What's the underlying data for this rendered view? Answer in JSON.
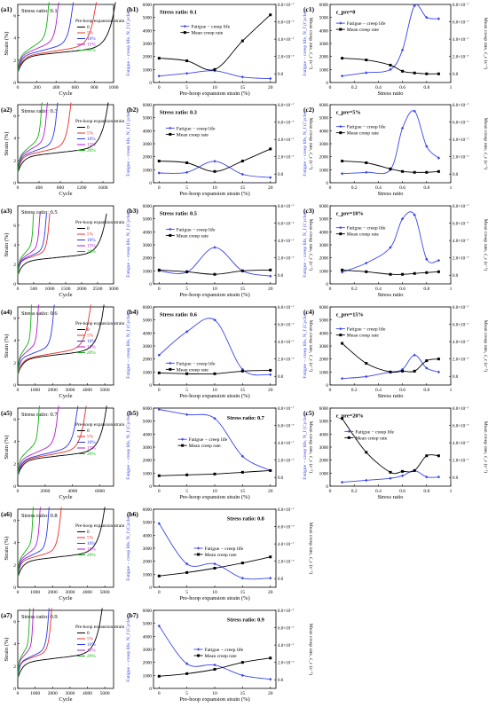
{
  "figure": {
    "col_a": {
      "ylabel": "Strain (%)",
      "xlabel": "Cycle",
      "legend_title": "Pre-hoop expansion strain",
      "legend_entries": [
        "0",
        "5%",
        "10%",
        "15%",
        "20%"
      ],
      "series_colors": [
        "#000000",
        "#e8302a",
        "#2a38e8",
        "#b01ad0",
        "#10b010"
      ]
    },
    "col_b": {
      "ylabel": "Fatigue − creep life, N_f (Cycle)",
      "ylabel2": "Mean creep rate, ε̇_c (s⁻¹)",
      "xlabel": "Pre-hoop expansion strain (%)",
      "legend": [
        "Fatigue − creep life",
        "Mean creep rate"
      ],
      "life_color": "#3a46e8",
      "rate_color": "#000000"
    },
    "col_c": {
      "ylabel": "Fatigue − creep life, N_f (Cycle)",
      "ylabel2": "Mean creep rate, ε̇_c (s⁻¹)",
      "xlabel": "Stress ratio",
      "legend": [
        "Fatigue − creep life",
        "Mean creep rate"
      ]
    }
  },
  "chart_data": [
    {
      "panel": "a1",
      "type": "line",
      "annotation": "Stress ratio: 0.1",
      "xlabel": "Cycle",
      "ylabel": "Strain (%)",
      "xlim": [
        0,
        1000
      ],
      "ylim": [
        0,
        7
      ],
      "xticks": [
        0,
        200,
        400,
        600,
        800,
        1000
      ],
      "yticks": [
        0,
        2,
        4,
        6
      ],
      "series": [
        {
          "name": "0",
          "fatigue_life": 1020
        },
        {
          "name": "5%",
          "fatigue_life": 820
        },
        {
          "name": "10%",
          "fatigue_life": 580
        },
        {
          "name": "15%",
          "fatigue_life": 430
        },
        {
          "name": "20%",
          "fatigue_life": 330
        }
      ]
    },
    {
      "panel": "a2",
      "type": "line",
      "annotation": "Stress ratio: 0.3",
      "xlabel": "Cycle",
      "ylabel": "Strain (%)",
      "xlim": [
        0,
        1800
      ],
      "ylim": [
        0,
        7
      ],
      "xticks": [
        0,
        400,
        800,
        1200,
        1600
      ],
      "yticks": [
        0,
        2,
        4,
        6
      ],
      "series": [
        {
          "name": "0",
          "fatigue_life": 1700
        },
        {
          "name": "5%",
          "fatigue_life": 1000
        },
        {
          "name": "10%",
          "fatigue_life": 750
        },
        {
          "name": "15%",
          "fatigue_life": 560
        },
        {
          "name": "20%",
          "fatigue_life": 460
        }
      ]
    },
    {
      "panel": "a3",
      "type": "line",
      "annotation": "Stress ratio: 0.5",
      "xlabel": "Cycle",
      "ylabel": "Strain (%)",
      "xlim": [
        0,
        3000
      ],
      "ylim": [
        0,
        8
      ],
      "xticks": [
        0,
        500,
        1000,
        1500,
        2000,
        2500,
        3000
      ],
      "yticks": [
        0,
        2,
        4,
        6
      ],
      "series": [
        {
          "name": "0",
          "fatigue_life": 2780
        },
        {
          "name": "5%",
          "fatigue_life": 1000
        },
        {
          "name": "10%",
          "fatigue_life": 900
        },
        {
          "name": "15%",
          "fatigue_life": 700
        },
        {
          "name": "20%",
          "fatigue_life": 500
        }
      ]
    },
    {
      "panel": "a4",
      "type": "line",
      "annotation": "Stress ratio: 0.6",
      "xlabel": "Cycle",
      "ylabel": "Strain (%)",
      "xlim": [
        0,
        5500
      ],
      "ylim": [
        0,
        7
      ],
      "xticks": [
        0,
        1000,
        2000,
        3000,
        4000,
        5000
      ],
      "yticks": [
        0,
        2,
        4,
        6
      ],
      "series": [
        {
          "name": "0",
          "fatigue_life": 4950
        },
        {
          "name": "5%",
          "fatigue_life": 4200
        },
        {
          "name": "10%",
          "fatigue_life": 2100
        },
        {
          "name": "15%",
          "fatigue_life": 1200
        },
        {
          "name": "20%",
          "fatigue_life": 800
        }
      ]
    },
    {
      "panel": "a5",
      "type": "line",
      "annotation": "Stress ratio: 0.7",
      "xlabel": "Cycle",
      "ylabel": "Strain (%)",
      "xlim": [
        0,
        7000
      ],
      "ylim": [
        0,
        7
      ],
      "xticks": [
        0,
        2000,
        4000,
        6000
      ],
      "yticks": [
        0,
        2,
        4,
        6
      ],
      "series": [
        {
          "name": "0",
          "fatigue_life": 6500
        },
        {
          "name": "5%",
          "fatigue_life": 5000
        },
        {
          "name": "10%",
          "fatigue_life": 4400
        },
        {
          "name": "15%",
          "fatigue_life": 3000
        },
        {
          "name": "20%",
          "fatigue_life": 1600
        }
      ]
    },
    {
      "panel": "a6",
      "type": "line",
      "annotation": "Stress ratio: 0.8",
      "xlabel": "Cycle",
      "ylabel": "Strain (%)",
      "xlim": [
        0,
        5500
      ],
      "ylim": [
        0,
        7
      ],
      "xticks": [
        0,
        1000,
        2000,
        3000,
        4000,
        5000
      ],
      "yticks": [
        0,
        2,
        4,
        6
      ],
      "series": [
        {
          "name": "0",
          "fatigue_life": 5000
        },
        {
          "name": "5%",
          "fatigue_life": 2500
        },
        {
          "name": "10%",
          "fatigue_life": 1800
        },
        {
          "name": "15%",
          "fatigue_life": 1300
        },
        {
          "name": "20%",
          "fatigue_life": 900
        }
      ]
    },
    {
      "panel": "a7",
      "type": "line",
      "annotation": "Stress ratio: 0.9",
      "xlabel": "Cycle",
      "ylabel": "Strain (%)",
      "xlim": [
        0,
        5500
      ],
      "ylim": [
        0,
        7
      ],
      "xticks": [
        0,
        1000,
        2000,
        3000,
        4000,
        5000
      ],
      "yticks": [
        0,
        2,
        4,
        6
      ],
      "series": [
        {
          "name": "0",
          "fatigue_life": 4850
        },
        {
          "name": "5%",
          "fatigue_life": 1950
        },
        {
          "name": "10%",
          "fatigue_life": 1800
        },
        {
          "name": "15%",
          "fatigue_life": 900
        },
        {
          "name": "20%",
          "fatigue_life": 700
        }
      ]
    },
    {
      "panel": "b1",
      "type": "scatter",
      "annotation": "Stress ratio: 0.1",
      "x": [
        0,
        5,
        10,
        15,
        20
      ],
      "xlim": [
        -1,
        21
      ],
      "xticks": [
        0,
        5,
        10,
        15,
        20
      ],
      "ylim": [
        0,
        6000
      ],
      "yticks": [
        0,
        1000,
        2000,
        3000,
        4000,
        5000,
        6000
      ],
      "y2lim": [
        -1e-07,
        8e-07
      ],
      "y2ticks": [
        "0.0",
        "2.0×10⁻⁷",
        "4.0×10⁻⁷",
        "6.0×10⁻⁷",
        "8.0×10⁻⁷"
      ],
      "y2values": [
        0,
        2e-07,
        4e-07,
        6e-07,
        8e-07
      ],
      "life": [
        500,
        700,
        900,
        420,
        300
      ],
      "rate": [
        1.8e-07,
        1.5e-07,
        5e-08,
        3.8e-07,
        6.8e-07
      ]
    },
    {
      "panel": "b2",
      "type": "scatter",
      "annotation": "Stress ratio: 0.3",
      "x": [
        0,
        5,
        10,
        15,
        20
      ],
      "xlim": [
        -1,
        21
      ],
      "xticks": [
        0,
        5,
        10,
        15,
        20
      ],
      "ylim": [
        0,
        6000
      ],
      "yticks": [
        0,
        1000,
        2000,
        3000,
        4000,
        5000,
        6000
      ],
      "y2lim": [
        -1e-07,
        8e-07
      ],
      "y2ticks": [
        "0.0",
        "2.0×10⁻⁷",
        "4.0×10⁻⁷",
        "6.0×10⁻⁷",
        "8.0×10⁻⁷"
      ],
      "y2values": [
        0,
        2e-07,
        4e-07,
        6e-07,
        8e-07
      ],
      "life": [
        750,
        800,
        1650,
        650,
        400
      ],
      "rate": [
        1.5e-07,
        1.3e-07,
        3e-08,
        1.5e-07,
        2.9e-07
      ]
    },
    {
      "panel": "b3",
      "type": "scatter",
      "annotation": "Stress ratio: 0.5",
      "x": [
        0,
        5,
        10,
        15,
        20
      ],
      "xlim": [
        -1,
        21
      ],
      "xticks": [
        0,
        5,
        10,
        15,
        20
      ],
      "ylim": [
        0,
        6000
      ],
      "yticks": [
        0,
        1000,
        2000,
        3000,
        4000,
        5000,
        6000
      ],
      "y2lim": [
        -1e-07,
        8e-07
      ],
      "y2ticks": [
        "0.0",
        "2.0×10⁻⁷",
        "4.0×10⁻⁷",
        "6.0×10⁻⁷",
        "8.0×10⁻⁷"
      ],
      "y2values": [
        0,
        2e-07,
        4e-07,
        6e-07,
        8e-07
      ],
      "life": [
        1000,
        900,
        2800,
        1000,
        600
      ],
      "rate": [
        6e-08,
        4e-08,
        1e-08,
        5e-08,
        6e-08
      ]
    },
    {
      "panel": "b4",
      "type": "scatter",
      "annotation": "Stress ratio: 0.6",
      "x": [
        0,
        5,
        10,
        15,
        20
      ],
      "xlim": [
        -1,
        21
      ],
      "xticks": [
        0,
        5,
        10,
        15,
        20
      ],
      "ylim": [
        0,
        6000
      ],
      "yticks": [
        0,
        1000,
        2000,
        3000,
        4000,
        5000,
        6000
      ],
      "y2lim": [
        -1e-07,
        8e-07
      ],
      "y2ticks": [
        "0.0",
        "2.0×10⁻⁷",
        "4.0×10⁻⁷",
        "6.0×10⁻⁷",
        "8.0×10⁻⁷"
      ],
      "y2values": [
        0,
        2e-07,
        4e-07,
        6e-07,
        8e-07
      ],
      "life": [
        2300,
        4100,
        5000,
        1200,
        800
      ],
      "rate": [
        4e-08,
        3e-08,
        3e-08,
        6e-08,
        7e-08
      ]
    },
    {
      "panel": "b5",
      "type": "scatter",
      "annotation": "Stress ratio: 0.7",
      "x": [
        0,
        5,
        10,
        15,
        20
      ],
      "xlim": [
        -1,
        21
      ],
      "xticks": [
        0,
        5,
        10,
        15,
        20
      ],
      "ylim": [
        0,
        6000
      ],
      "yticks": [
        0,
        1000,
        2000,
        3000,
        4000,
        5000,
        6000
      ],
      "y2lim": [
        -1e-07,
        8e-07
      ],
      "y2ticks": [
        "0.0",
        "2.0×10⁻⁷",
        "4.0×10⁻⁷",
        "6.0×10⁻⁷",
        "8.0×10⁻⁷"
      ],
      "y2values": [
        0,
        2e-07,
        4e-07,
        6e-07,
        8e-07
      ],
      "life": [
        5900,
        5500,
        5200,
        2300,
        1200
      ],
      "rate": [
        2e-08,
        3e-08,
        4e-08,
        6e-08,
        8e-08
      ]
    },
    {
      "panel": "b6",
      "type": "scatter",
      "annotation": "Stress ratio: 0.8",
      "x": [
        0,
        5,
        10,
        15,
        20
      ],
      "xlim": [
        -1,
        21
      ],
      "xticks": [
        0,
        5,
        10,
        15,
        20
      ],
      "ylim": [
        0,
        6000
      ],
      "yticks": [
        0,
        1000,
        2000,
        3000,
        4000,
        5000,
        6000
      ],
      "y2lim": [
        -1e-07,
        8e-07
      ],
      "y2ticks": [
        "0.0",
        "2.0×10⁻⁷",
        "4.0×10⁻⁷",
        "6.0×10⁻⁷",
        "8.0×10⁻⁷"
      ],
      "y2values": [
        0,
        2e-07,
        4e-07,
        6e-07,
        8e-07
      ],
      "life": [
        4900,
        1800,
        1800,
        700,
        700
      ],
      "rate": [
        3e-08,
        7e-08,
        1.2e-07,
        1.8e-07,
        2.5e-07
      ]
    },
    {
      "panel": "b7",
      "type": "scatter",
      "annotation": "Stress ratio: 0.9",
      "x": [
        0,
        5,
        10,
        15,
        20
      ],
      "xlim": [
        -1,
        21
      ],
      "xticks": [
        0,
        5,
        10,
        15,
        20
      ],
      "ylim": [
        0,
        6000
      ],
      "yticks": [
        0,
        1000,
        2000,
        3000,
        4000,
        5000,
        6000
      ],
      "y2lim": [
        -1e-07,
        8e-07
      ],
      "y2ticks": [
        "0.0",
        "2.0×10⁻⁷",
        "4.0×10⁻⁷",
        "6.0×10⁻⁷",
        "8.0×10⁻⁷"
      ],
      "y2values": [
        0,
        2e-07,
        4e-07,
        6e-07,
        8e-07
      ],
      "life": [
        4800,
        1900,
        1800,
        1000,
        700
      ],
      "rate": [
        4e-08,
        7e-08,
        1.2e-07,
        2e-07,
        2.5e-07
      ]
    },
    {
      "panel": "c1",
      "type": "scatter",
      "annotation": "ε_pre=0",
      "x": [
        0.1,
        0.3,
        0.5,
        0.6,
        0.7,
        0.8,
        0.9
      ],
      "xlim": [
        0,
        1
      ],
      "xticks": [
        0.0,
        0.2,
        0.4,
        0.6,
        0.8,
        1.0
      ],
      "ylim": [
        0,
        6000
      ],
      "yticks": [
        0,
        1000,
        2000,
        3000,
        4000,
        5000,
        6000
      ],
      "y2lim": [
        -1e-07,
        8e-07
      ],
      "y2ticks": [
        "0.0",
        "2.0×10⁻⁷",
        "4.0×10⁻⁷",
        "6.0×10⁻⁷",
        "8.0×10⁻⁷"
      ],
      "y2values": [
        0,
        2e-07,
        4e-07,
        6e-07,
        8e-07
      ],
      "life": [
        500,
        750,
        1000,
        2500,
        5900,
        5000,
        4900
      ],
      "rate": [
        1.8e-07,
        1.6e-07,
        1e-07,
        3e-08,
        1e-08,
        0.0,
        0.0
      ]
    },
    {
      "panel": "c2",
      "type": "scatter",
      "annotation": "ε_pre=5%",
      "x": [
        0.1,
        0.3,
        0.5,
        0.6,
        0.7,
        0.8,
        0.9
      ],
      "xlim": [
        0,
        1
      ],
      "xticks": [
        0.0,
        0.2,
        0.4,
        0.6,
        0.8,
        1.0
      ],
      "ylim": [
        0,
        6000
      ],
      "yticks": [
        0,
        1000,
        2000,
        3000,
        4000,
        5000,
        6000
      ],
      "y2lim": [
        -1e-07,
        8e-07
      ],
      "y2ticks": [
        "0.0",
        "2.0×10⁻⁷",
        "4.0×10⁻⁷",
        "6.0×10⁻⁷",
        "8.0×10⁻⁷"
      ],
      "y2values": [
        0,
        2e-07,
        4e-07,
        6e-07,
        8e-07
      ],
      "life": [
        700,
        800,
        1000,
        4200,
        5500,
        2800,
        1900
      ],
      "rate": [
        1.5e-07,
        1.3e-07,
        6e-08,
        3e-08,
        2e-08,
        2e-08,
        3e-08
      ]
    },
    {
      "panel": "c3",
      "type": "scatter",
      "annotation": "ε_pre=10%",
      "x": [
        0.1,
        0.3,
        0.5,
        0.6,
        0.7,
        0.8,
        0.9
      ],
      "xlim": [
        0,
        1
      ],
      "xticks": [
        0.0,
        0.2,
        0.4,
        0.6,
        0.8,
        1.0
      ],
      "ylim": [
        0,
        6000
      ],
      "yticks": [
        0,
        1000,
        2000,
        3000,
        4000,
        5000,
        6000
      ],
      "y2lim": [
        -1e-07,
        8e-07
      ],
      "y2ticks": [
        "0.0",
        "2.0×10⁻⁷",
        "4.0×10⁻⁷",
        "6.0×10⁻⁷",
        "8.0×10⁻⁷"
      ],
      "y2values": [
        0,
        2e-07,
        4e-07,
        6e-07,
        8e-07
      ],
      "life": [
        900,
        1600,
        2800,
        5000,
        5300,
        1900,
        1800
      ],
      "rate": [
        6e-08,
        4e-08,
        1e-08,
        1e-08,
        2e-08,
        3e-08,
        4e-08
      ]
    },
    {
      "panel": "c4",
      "type": "scatter",
      "annotation": "ε_pre=15%",
      "x": [
        0.1,
        0.3,
        0.5,
        0.6,
        0.7,
        0.8,
        0.9
      ],
      "xlim": [
        0,
        1
      ],
      "xticks": [
        0.0,
        0.2,
        0.4,
        0.6,
        0.8,
        1.0
      ],
      "ylim": [
        0,
        6000
      ],
      "yticks": [
        0,
        1000,
        2000,
        3000,
        4000,
        5000,
        6000
      ],
      "y2lim": [
        -1e-07,
        8e-07
      ],
      "y2ticks": [
        "0.0",
        "2.0×10⁻⁷",
        "4.0×10⁻⁷",
        "6.0×10⁻⁷",
        "8.0×10⁻⁷"
      ],
      "y2values": [
        0,
        2e-07,
        4e-07,
        6e-07,
        8e-07
      ],
      "life": [
        500,
        650,
        1000,
        1200,
        2300,
        1300,
        1000
      ],
      "rate": [
        3.8e-07,
        1.5e-07,
        5e-08,
        6e-08,
        6e-08,
        1.8e-07,
        2e-07
      ]
    },
    {
      "panel": "c5",
      "type": "scatter",
      "annotation": "ε_pre=20%",
      "x": [
        0.1,
        0.3,
        0.5,
        0.6,
        0.7,
        0.8,
        0.9
      ],
      "xlim": [
        0,
        1
      ],
      "xticks": [
        0.0,
        0.2,
        0.4,
        0.6,
        0.8,
        1.0
      ],
      "ylim": [
        0,
        6000
      ],
      "yticks": [
        0,
        1000,
        2000,
        3000,
        4000,
        5000,
        6000
      ],
      "y2lim": [
        -1e-07,
        8e-07
      ],
      "y2ticks": [
        "0.0",
        "2.0×10⁻⁷",
        "4.0×10⁻⁷",
        "6.0×10⁻⁷",
        "8.0×10⁻⁷"
      ],
      "y2values": [
        0,
        2e-07,
        4e-07,
        6e-07,
        8e-07
      ],
      "life": [
        300,
        450,
        600,
        800,
        1200,
        700,
        700
      ],
      "rate": [
        6.8e-07,
        2.9e-07,
        6e-08,
        7e-08,
        8e-08,
        2.5e-07,
        2.5e-07
      ]
    }
  ]
}
